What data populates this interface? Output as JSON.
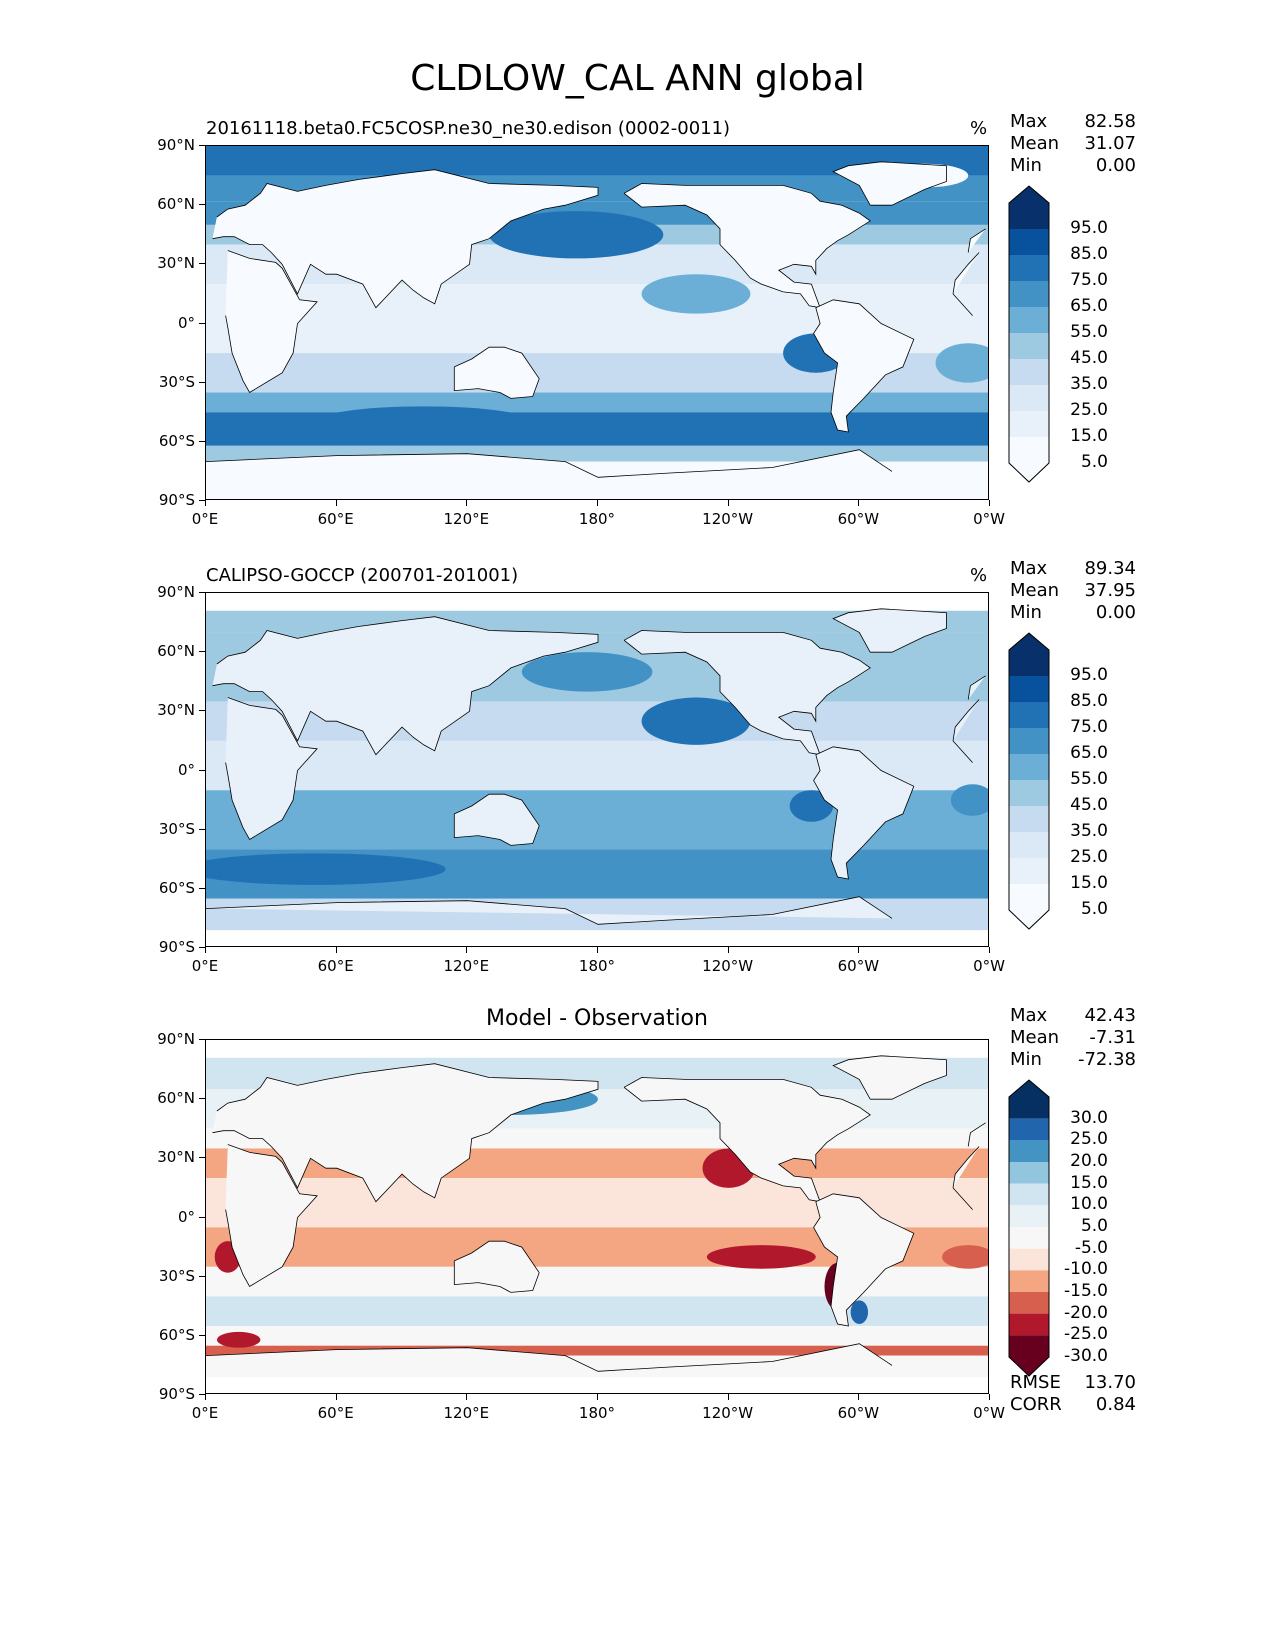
{
  "title": "CLDLOW_CAL ANN global",
  "panels": [
    {
      "name": "test",
      "left_title": "20161118.beta0.FC5COSP.ne30_ne30.edison (0002-0011)",
      "center_title": "",
      "units": "%",
      "stats": [
        {
          "label": "Max",
          "value": "82.58"
        },
        {
          "label": "Mean",
          "value": "31.07"
        },
        {
          "label": "Min",
          "value": "0.00"
        }
      ],
      "extra_stats": [],
      "colorbar": {
        "labels": [
          "95.0",
          "85.0",
          "75.0",
          "65.0",
          "55.0",
          "45.0",
          "35.0",
          "25.0",
          "15.0",
          "5.0"
        ],
        "colors": [
          "#08306b",
          "#08519c",
          "#2171b5",
          "#4292c6",
          "#6baed6",
          "#9ecae1",
          "#c6dbef",
          "#dbe9f6",
          "#e8f1fa",
          "#f7fbff"
        ]
      }
    },
    {
      "name": "reference",
      "left_title": "CALIPSO-GOCCP (200701-201001)",
      "center_title": "",
      "units": "%",
      "stats": [
        {
          "label": "Max",
          "value": "89.34"
        },
        {
          "label": "Mean",
          "value": "37.95"
        },
        {
          "label": "Min",
          "value": "0.00"
        }
      ],
      "extra_stats": [],
      "colorbar": {
        "labels": [
          "95.0",
          "85.0",
          "75.0",
          "65.0",
          "55.0",
          "45.0",
          "35.0",
          "25.0",
          "15.0",
          "5.0"
        ],
        "colors": [
          "#08306b",
          "#08519c",
          "#2171b5",
          "#4292c6",
          "#6baed6",
          "#9ecae1",
          "#c6dbef",
          "#dbe9f6",
          "#e8f1fa",
          "#f7fbff"
        ]
      }
    },
    {
      "name": "difference",
      "left_title": "",
      "center_title": "Model - Observation",
      "units": "",
      "stats": [
        {
          "label": "Max",
          "value": "42.43"
        },
        {
          "label": "Mean",
          "value": "-7.31"
        },
        {
          "label": "Min",
          "value": "-72.38"
        }
      ],
      "extra_stats": [
        {
          "label": "RMSE",
          "value": "13.70"
        },
        {
          "label": "CORR",
          "value": "0.84"
        }
      ],
      "colorbar": {
        "labels": [
          "30.0",
          "25.0",
          "20.0",
          "15.0",
          "10.0",
          "5.0",
          "-5.0",
          "-10.0",
          "-15.0",
          "-20.0",
          "-25.0",
          "-30.0"
        ],
        "colors": [
          "#053061",
          "#2166ac",
          "#4393c3",
          "#92c5de",
          "#d1e5f0",
          "#e8f1f6",
          "#f7f7f7",
          "#fbe5da",
          "#f4a582",
          "#d6604d",
          "#b2182b",
          "#67001f"
        ]
      }
    }
  ],
  "axes": {
    "lat_ticks": [
      "90°N",
      "60°N",
      "30°N",
      "0°",
      "30°S",
      "60°S",
      "90°S"
    ],
    "lon_ticks": [
      "0°E",
      "60°E",
      "120°E",
      "180°",
      "120°W",
      "60°W",
      "0°W"
    ]
  },
  "style": {
    "land_color": "#ffffff",
    "coast_color": "#000000"
  }
}
